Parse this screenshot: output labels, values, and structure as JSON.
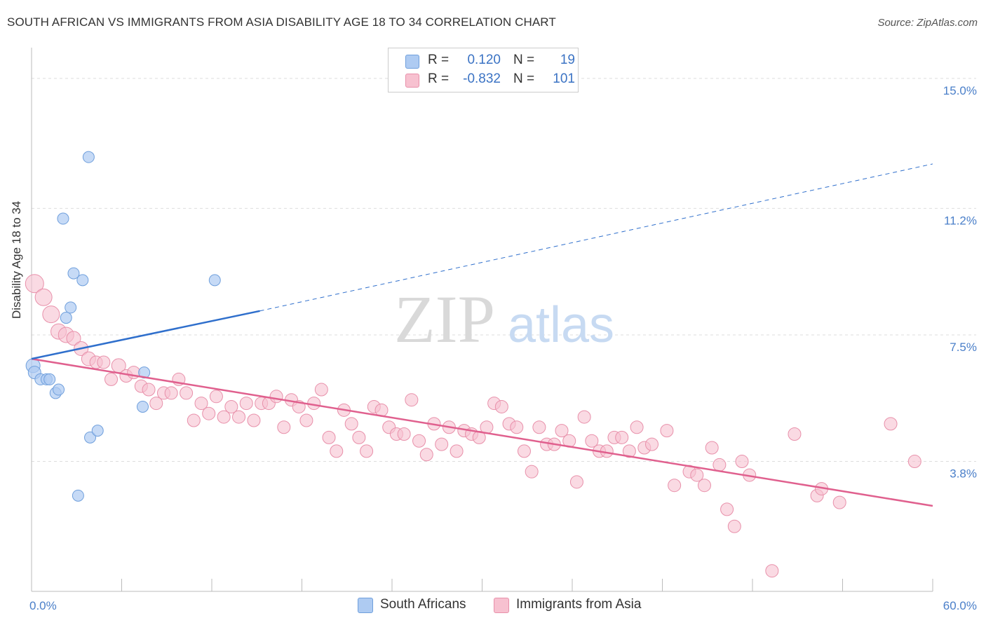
{
  "title": "SOUTH AFRICAN VS IMMIGRANTS FROM ASIA DISABILITY AGE 18 TO 34 CORRELATION CHART",
  "source": "Source: ZipAtlas.com",
  "watermark": {
    "zip": "ZIP",
    "atlas": "atlas"
  },
  "legend": {
    "r_label": "R =",
    "n_label": "N =",
    "south_africans": {
      "r": "0.120",
      "n": "19"
    },
    "asia": {
      "r": "-0.832",
      "n": "101"
    }
  },
  "bottom_legend": {
    "south_africans": "South Africans",
    "asia": "Immigrants from Asia"
  },
  "colors": {
    "blue_fill": "#aecbf2",
    "blue_stroke": "#6f9fdc",
    "blue_line": "#2f6fcc",
    "pink_fill": "#f7c1d0",
    "pink_stroke": "#e890aa",
    "pink_line": "#e0608e",
    "tick_label": "#4a7fc9"
  },
  "chart_data": {
    "type": "scatter",
    "title": "SOUTH AFRICAN VS IMMIGRANTS FROM ASIA DISABILITY AGE 18 TO 34 CORRELATION CHART",
    "xlabel": "",
    "ylabel": "Disability Age 18 to 34",
    "xlim": [
      0,
      60
    ],
    "ylim": [
      0,
      15.9
    ],
    "x_tick_labels": [
      "0.0%",
      "60.0%"
    ],
    "y_ticks": [
      3.8,
      7.5,
      11.2,
      15.0
    ],
    "y_tick_labels": [
      "3.8%",
      "7.5%",
      "11.2%",
      "15.0%"
    ],
    "grid": true,
    "legend_position": "top-center",
    "series": [
      {
        "name": "South Africans",
        "points": [
          [
            0.1,
            6.6,
            10
          ],
          [
            0.2,
            6.4,
            9
          ],
          [
            0.6,
            6.2,
            8
          ],
          [
            1.0,
            6.2,
            8
          ],
          [
            1.2,
            6.2,
            8
          ],
          [
            1.6,
            5.8,
            8
          ],
          [
            1.8,
            5.9,
            8
          ],
          [
            2.1,
            10.9,
            8
          ],
          [
            2.3,
            8.0,
            8
          ],
          [
            2.6,
            8.3,
            8
          ],
          [
            2.8,
            9.3,
            8
          ],
          [
            3.1,
            2.8,
            8
          ],
          [
            3.4,
            9.1,
            8
          ],
          [
            3.8,
            12.7,
            8
          ],
          [
            3.9,
            4.5,
            8
          ],
          [
            4.4,
            4.7,
            8
          ],
          [
            7.4,
            5.4,
            8
          ],
          [
            7.5,
            6.4,
            8
          ],
          [
            12.2,
            9.1,
            8
          ]
        ],
        "trend": {
          "x": [
            0,
            15.2
          ],
          "y": [
            6.8,
            8.2
          ]
        },
        "trend_extension": {
          "x": [
            15.2,
            60
          ],
          "y": [
            8.2,
            12.5
          ]
        }
      },
      {
        "name": "Immigrants from Asia",
        "points": [
          [
            0.2,
            9.0,
            13
          ],
          [
            0.8,
            8.6,
            12
          ],
          [
            1.3,
            8.1,
            12
          ],
          [
            1.8,
            7.6,
            11
          ],
          [
            2.3,
            7.5,
            11
          ],
          [
            2.8,
            7.4,
            10
          ],
          [
            3.3,
            7.1,
            10
          ],
          [
            3.8,
            6.8,
            10
          ],
          [
            4.3,
            6.7,
            9
          ],
          [
            4.8,
            6.7,
            9
          ],
          [
            5.3,
            6.2,
            9
          ],
          [
            5.8,
            6.6,
            10
          ],
          [
            6.3,
            6.3,
            9
          ],
          [
            6.8,
            6.4,
            9
          ],
          [
            7.3,
            6.0,
            9
          ],
          [
            7.8,
            5.9,
            9
          ],
          [
            8.3,
            5.5,
            9
          ],
          [
            8.8,
            5.8,
            9
          ],
          [
            9.3,
            5.8,
            9
          ],
          [
            9.8,
            6.2,
            9
          ],
          [
            10.3,
            5.8,
            9
          ],
          [
            10.8,
            5.0,
            9
          ],
          [
            11.3,
            5.5,
            9
          ],
          [
            11.8,
            5.2,
            9
          ],
          [
            12.3,
            5.7,
            9
          ],
          [
            12.8,
            5.1,
            9
          ],
          [
            13.3,
            5.4,
            9
          ],
          [
            13.8,
            5.1,
            9
          ],
          [
            14.3,
            5.5,
            9
          ],
          [
            14.8,
            5.0,
            9
          ],
          [
            15.3,
            5.5,
            9
          ],
          [
            15.8,
            5.5,
            9
          ],
          [
            16.3,
            5.7,
            9
          ],
          [
            16.8,
            4.8,
            9
          ],
          [
            17.3,
            5.6,
            9
          ],
          [
            17.8,
            5.4,
            9
          ],
          [
            18.3,
            5.0,
            9
          ],
          [
            18.8,
            5.5,
            9
          ],
          [
            19.3,
            5.9,
            9
          ],
          [
            19.8,
            4.5,
            9
          ],
          [
            20.3,
            4.1,
            9
          ],
          [
            20.8,
            5.3,
            9
          ],
          [
            21.3,
            4.9,
            9
          ],
          [
            21.8,
            4.5,
            9
          ],
          [
            22.3,
            4.1,
            9
          ],
          [
            22.8,
            5.4,
            9
          ],
          [
            23.3,
            5.3,
            9
          ],
          [
            23.8,
            4.8,
            9
          ],
          [
            24.3,
            4.6,
            9
          ],
          [
            24.8,
            4.6,
            9
          ],
          [
            25.3,
            5.6,
            9
          ],
          [
            25.8,
            4.4,
            9
          ],
          [
            26.3,
            4.0,
            9
          ],
          [
            26.8,
            4.9,
            9
          ],
          [
            27.3,
            4.3,
            9
          ],
          [
            27.8,
            4.8,
            9
          ],
          [
            28.3,
            4.1,
            9
          ],
          [
            28.8,
            4.7,
            9
          ],
          [
            29.3,
            4.6,
            9
          ],
          [
            29.8,
            4.5,
            9
          ],
          [
            30.3,
            4.8,
            9
          ],
          [
            30.8,
            5.5,
            9
          ],
          [
            31.3,
            5.4,
            9
          ],
          [
            31.8,
            4.9,
            9
          ],
          [
            32.3,
            4.8,
            9
          ],
          [
            32.8,
            4.1,
            9
          ],
          [
            33.3,
            3.5,
            9
          ],
          [
            33.8,
            4.8,
            9
          ],
          [
            34.3,
            4.3,
            9
          ],
          [
            34.8,
            4.3,
            9
          ],
          [
            35.3,
            4.7,
            9
          ],
          [
            35.8,
            4.4,
            9
          ],
          [
            36.3,
            3.2,
            9
          ],
          [
            36.8,
            5.1,
            9
          ],
          [
            37.3,
            4.4,
            9
          ],
          [
            37.8,
            4.1,
            9
          ],
          [
            38.3,
            4.1,
            9
          ],
          [
            38.8,
            4.5,
            9
          ],
          [
            39.3,
            4.5,
            9
          ],
          [
            39.8,
            4.1,
            9
          ],
          [
            40.3,
            4.8,
            9
          ],
          [
            40.8,
            4.2,
            9
          ],
          [
            41.3,
            4.3,
            9
          ],
          [
            42.3,
            4.7,
            9
          ],
          [
            42.8,
            3.1,
            9
          ],
          [
            43.8,
            3.5,
            9
          ],
          [
            44.3,
            3.4,
            9
          ],
          [
            44.8,
            3.1,
            9
          ],
          [
            45.3,
            4.2,
            9
          ],
          [
            45.8,
            3.7,
            9
          ],
          [
            46.3,
            2.4,
            9
          ],
          [
            46.8,
            1.9,
            9
          ],
          [
            47.3,
            3.8,
            9
          ],
          [
            47.8,
            3.4,
            9
          ],
          [
            49.3,
            0.6,
            9
          ],
          [
            50.8,
            4.6,
            9
          ],
          [
            52.3,
            2.8,
            9
          ],
          [
            52.6,
            3.0,
            9
          ],
          [
            53.8,
            2.6,
            9
          ],
          [
            57.2,
            4.9,
            9
          ],
          [
            58.8,
            3.8,
            9
          ]
        ],
        "trend": {
          "x": [
            0,
            60
          ],
          "y": [
            6.8,
            2.5
          ]
        }
      }
    ]
  }
}
